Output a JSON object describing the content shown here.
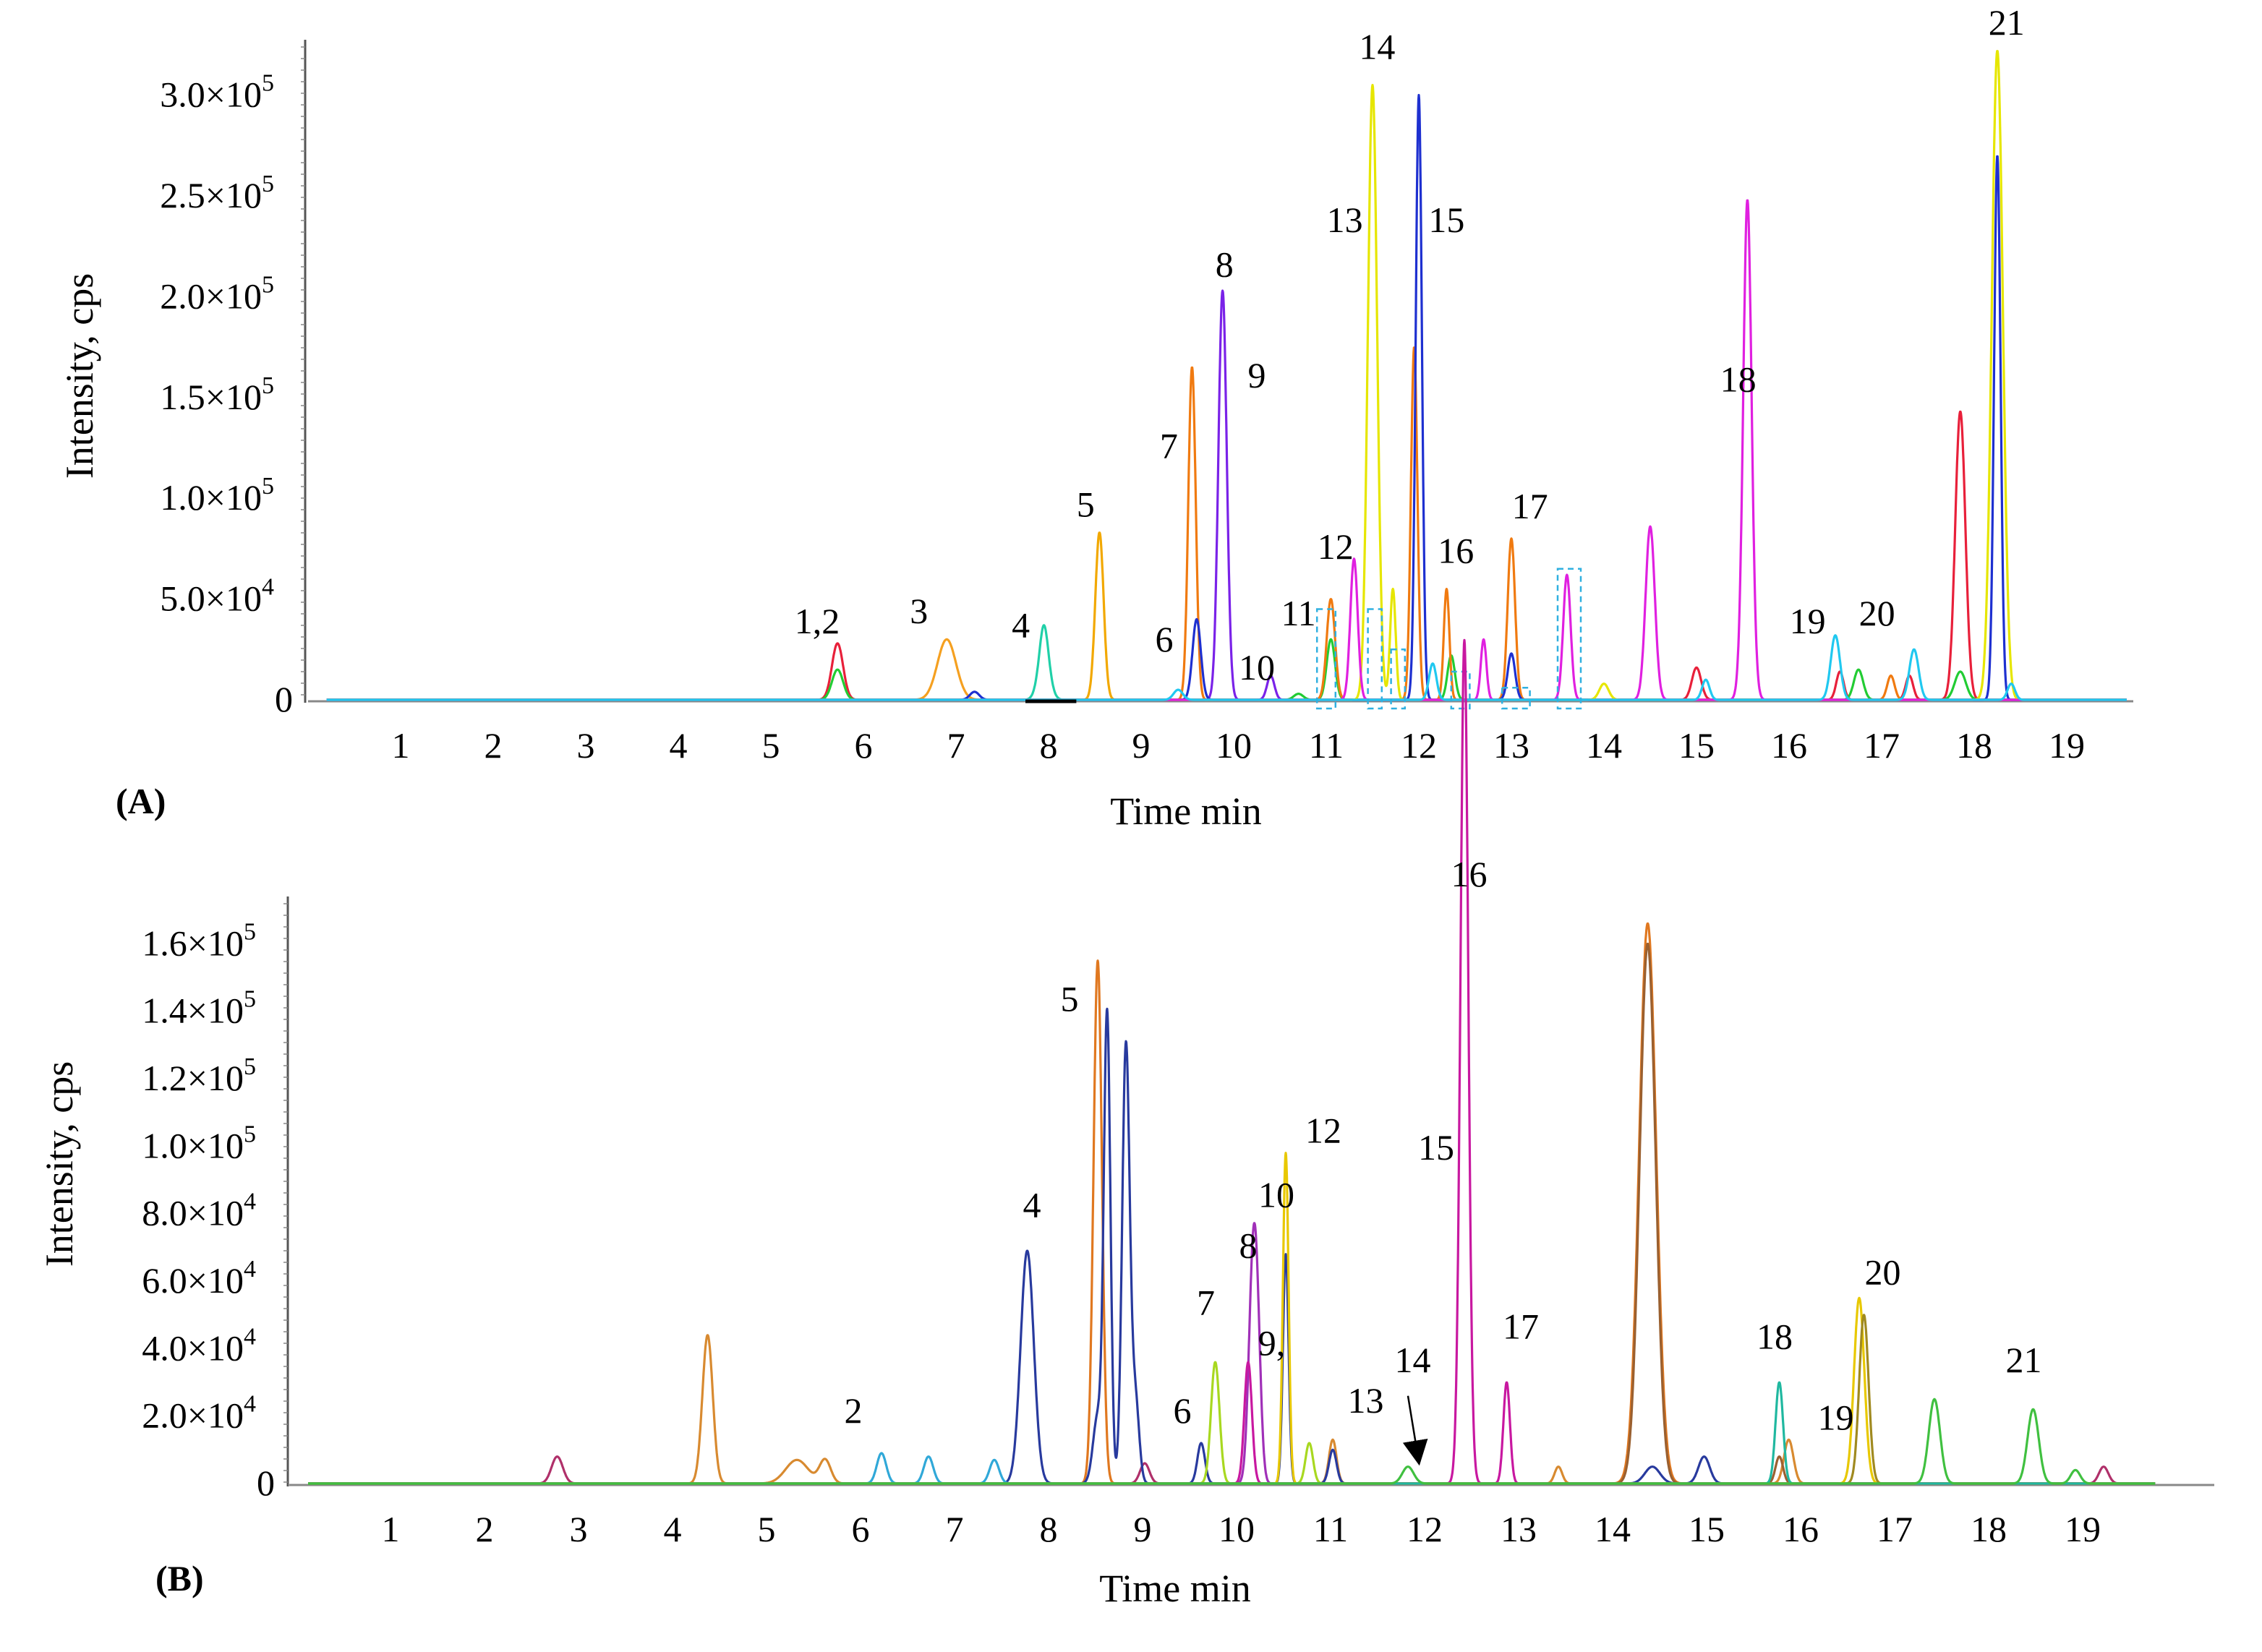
{
  "chart_data": [
    {
      "type": "line",
      "panel_label": "(A)",
      "xlabel": "Time min",
      "ylabel": "Intensity, cps",
      "xlim": [
        0,
        19.7
      ],
      "ylim": [
        0,
        340000
      ],
      "x_ticks": [
        {
          "value": 1,
          "label": "1"
        },
        {
          "value": 2,
          "label": "2"
        },
        {
          "value": 3,
          "label": "3"
        },
        {
          "value": 4,
          "label": "4"
        },
        {
          "value": 5,
          "label": "5"
        },
        {
          "value": 6,
          "label": "6"
        },
        {
          "value": 7,
          "label": "7"
        },
        {
          "value": 8,
          "label": "8"
        },
        {
          "value": 9,
          "label": "9"
        },
        {
          "value": 10,
          "label": "10"
        },
        {
          "value": 11,
          "label": "11"
        },
        {
          "value": 12,
          "label": "12"
        },
        {
          "value": 13,
          "label": "13"
        },
        {
          "value": 14,
          "label": "14"
        },
        {
          "value": 15,
          "label": "15"
        },
        {
          "value": 16,
          "label": "16"
        },
        {
          "value": 17,
          "label": "17"
        },
        {
          "value": 18,
          "label": "18"
        },
        {
          "value": 19,
          "label": "19"
        }
      ],
      "y_ticks": [
        {
          "value": 0,
          "mantissa": "0",
          "exp": ""
        },
        {
          "value": 50000,
          "mantissa": "5.0×10",
          "exp": "4"
        },
        {
          "value": 100000,
          "mantissa": "1.0×10",
          "exp": "5"
        },
        {
          "value": 150000,
          "mantissa": "1.5×10",
          "exp": "5"
        },
        {
          "value": 200000,
          "mantissa": "2.0×10",
          "exp": "5"
        },
        {
          "value": 250000,
          "mantissa": "2.5×10",
          "exp": "5"
        },
        {
          "value": 300000,
          "mantissa": "3.0×10",
          "exp": "5"
        }
      ],
      "series": [
        {
          "name": "red",
          "color": "#e8203a",
          "peaks": [
            [
              5.72,
              28000,
              0.06
            ],
            [
              15.0,
              16000,
              0.05
            ],
            [
              16.55,
              14000,
              0.04
            ],
            [
              17.3,
              12000,
              0.04
            ],
            [
              17.85,
              143000,
              0.055
            ]
          ]
        },
        {
          "name": "green",
          "color": "#22cc33",
          "peaks": [
            [
              5.72,
              15000,
              0.06
            ],
            [
              10.7,
              3000,
              0.05
            ],
            [
              11.05,
              30000,
              0.045
            ],
            [
              12.35,
              22000,
              0.04
            ],
            [
              16.75,
              15000,
              0.05
            ],
            [
              17.85,
              14000,
              0.06
            ]
          ]
        },
        {
          "name": "orange",
          "color": "#f5a020",
          "peaks": [
            [
              6.9,
              30000,
              0.1
            ]
          ]
        },
        {
          "name": "teal",
          "color": "#20d0a8",
          "peaks": [
            [
              7.95,
              25000,
              0.06
            ],
            [
              7.95,
              12000,
              0.04
            ]
          ]
        },
        {
          "name": "gold",
          "color": "#f2a800",
          "peaks": [
            [
              8.55,
              83000,
              0.045
            ]
          ]
        },
        {
          "name": "dark-orange",
          "color": "#f07a10",
          "peaks": [
            [
              9.55,
              165000,
              0.04
            ],
            [
              11.05,
              50000,
              0.045
            ],
            [
              11.95,
              175000,
              0.035
            ],
            [
              12.3,
              55000,
              0.03
            ],
            [
              13.0,
              80000,
              0.04
            ],
            [
              17.1,
              12000,
              0.04
            ]
          ]
        },
        {
          "name": "violet",
          "color": "#7a22e8",
          "peaks": [
            [
              9.88,
              203000,
              0.045
            ],
            [
              10.4,
              12000,
              0.04
            ]
          ]
        },
        {
          "name": "blue",
          "color": "#1e30d0",
          "peaks": [
            [
              7.2,
              4000,
              0.05
            ],
            [
              9.6,
              40000,
              0.045
            ],
            [
              12.0,
              220000,
              0.035
            ],
            [
              12.0,
              80000,
              0.03
            ],
            [
              13.0,
              23000,
              0.04
            ],
            [
              18.25,
              270000,
              0.035
            ]
          ]
        },
        {
          "name": "yellow",
          "color": "#e6e600",
          "peaks": [
            [
              11.5,
              305000,
              0.05
            ],
            [
              11.72,
              55000,
              0.03
            ],
            [
              14.0,
              8000,
              0.05
            ],
            [
              18.25,
              322000,
              0.06
            ]
          ]
        },
        {
          "name": "magenta",
          "color": "#e020e0",
          "peaks": [
            [
              11.3,
              70000,
              0.04
            ],
            [
              12.7,
              30000,
              0.03
            ],
            [
              13.6,
              62000,
              0.04
            ],
            [
              14.5,
              86000,
              0.05
            ],
            [
              15.55,
              148000,
              0.05
            ],
            [
              15.55,
              100000,
              0.04
            ]
          ]
        },
        {
          "name": "cyan",
          "color": "#20c8f0",
          "peaks": [
            [
              9.4,
              5000,
              0.05
            ],
            [
              12.15,
              18000,
              0.04
            ],
            [
              15.1,
              10000,
              0.04
            ],
            [
              16.5,
              32000,
              0.05
            ],
            [
              17.35,
              25000,
              0.05
            ],
            [
              18.4,
              8000,
              0.04
            ]
          ]
        }
      ],
      "peak_labels": [
        {
          "text": "1,2",
          "x": 5.5,
          "y": 33000
        },
        {
          "text": "3",
          "x": 6.6,
          "y": 38000
        },
        {
          "text": "4",
          "x": 7.7,
          "y": 31000
        },
        {
          "text": "5",
          "x": 8.4,
          "y": 91000
        },
        {
          "text": "6",
          "x": 9.25,
          "y": 24000
        },
        {
          "text": "7",
          "x": 9.3,
          "y": 120000
        },
        {
          "text": "8",
          "x": 9.9,
          "y": 210000
        },
        {
          "text": "9",
          "x": 10.25,
          "y": 155000
        },
        {
          "text": "10",
          "x": 10.25,
          "y": 10000
        },
        {
          "text": "11",
          "x": 10.7,
          "y": 37000
        },
        {
          "text": "12",
          "x": 11.1,
          "y": 70000
        },
        {
          "text": "13",
          "x": 11.2,
          "y": 232000
        },
        {
          "text": "14",
          "x": 11.55,
          "y": 318000
        },
        {
          "text": "15",
          "x": 12.3,
          "y": 232000
        },
        {
          "text": "16",
          "x": 12.4,
          "y": 68000
        },
        {
          "text": "17",
          "x": 13.2,
          "y": 90000
        },
        {
          "text": "18",
          "x": 15.45,
          "y": 153000
        },
        {
          "text": "19",
          "x": 16.2,
          "y": 33000
        },
        {
          "text": "20",
          "x": 16.95,
          "y": 37000
        },
        {
          "text": "21",
          "x": 18.35,
          "y": 330000
        }
      ],
      "annotations": "dashed cyan boxes mark small peaks near 11.0, 11.5, 11.8, 12.4, 13.0 and 13.6 min"
    },
    {
      "type": "line",
      "panel_label": "(B)",
      "xlabel": "Time min",
      "ylabel": "Intensity, cps",
      "xlim": [
        0,
        19.9
      ],
      "ylim": [
        0,
        180000
      ],
      "x_ticks": [
        {
          "value": 1,
          "label": "1"
        },
        {
          "value": 2,
          "label": "2"
        },
        {
          "value": 3,
          "label": "3"
        },
        {
          "value": 4,
          "label": "4"
        },
        {
          "value": 5,
          "label": "5"
        },
        {
          "value": 6,
          "label": "6"
        },
        {
          "value": 7,
          "label": "7"
        },
        {
          "value": 8,
          "label": "8"
        },
        {
          "value": 9,
          "label": "9"
        },
        {
          "value": 10,
          "label": "10"
        },
        {
          "value": 11,
          "label": "11"
        },
        {
          "value": 12,
          "label": "12"
        },
        {
          "value": 13,
          "label": "13"
        },
        {
          "value": 14,
          "label": "14"
        },
        {
          "value": 15,
          "label": "15"
        },
        {
          "value": 16,
          "label": "16"
        },
        {
          "value": 17,
          "label": "17"
        },
        {
          "value": 18,
          "label": "18"
        },
        {
          "value": 19,
          "label": "19"
        }
      ],
      "y_ticks": [
        {
          "value": 0,
          "mantissa": "0",
          "exp": ""
        },
        {
          "value": 20000,
          "mantissa": "2.0×10",
          "exp": "4"
        },
        {
          "value": 40000,
          "mantissa": "4.0×10",
          "exp": "4"
        },
        {
          "value": 60000,
          "mantissa": "6.0×10",
          "exp": "4"
        },
        {
          "value": 80000,
          "mantissa": "8.0×10",
          "exp": "4"
        },
        {
          "value": 100000,
          "mantissa": "1.0×10",
          "exp": "5"
        },
        {
          "value": 120000,
          "mantissa": "1.2×10",
          "exp": "5"
        },
        {
          "value": 140000,
          "mantissa": "1.4×10",
          "exp": "5"
        },
        {
          "value": 160000,
          "mantissa": "1.6×10",
          "exp": "5"
        }
      ],
      "series": [
        {
          "name": "maroon",
          "color": "#b0306a",
          "peaks": [
            [
              2.85,
              8000,
              0.06
            ],
            [
              9.1,
              6000,
              0.05
            ],
            [
              19.3,
              5000,
              0.05
            ]
          ]
        },
        {
          "name": "orange-brown",
          "color": "#d88a30",
          "peaks": [
            [
              4.45,
              44000,
              0.055
            ],
            [
              5.4,
              7000,
              0.12
            ],
            [
              5.7,
              7000,
              0.06
            ],
            [
              11.1,
              13000,
              0.04
            ],
            [
              13.5,
              5000,
              0.04
            ],
            [
              15.95,
              13000,
              0.05
            ]
          ]
        },
        {
          "name": "dark-orange",
          "color": "#e07820",
          "peaks": [
            [
              8.6,
              155000,
              0.045
            ],
            [
              14.45,
              166000,
              0.09
            ]
          ]
        },
        {
          "name": "brown",
          "color": "#9a6030",
          "peaks": [
            [
              14.45,
              160000,
              0.085
            ],
            [
              15.85,
              8000,
              0.04
            ]
          ]
        },
        {
          "name": "navy",
          "color": "#283a9e",
          "peaks": [
            [
              7.85,
              69000,
              0.07
            ],
            [
              8.6,
              20000,
              0.05
            ],
            [
              8.7,
              138000,
              0.035
            ],
            [
              8.9,
              130000,
              0.04
            ],
            [
              9.0,
              25000,
              0.04
            ],
            [
              9.7,
              12000,
              0.04
            ],
            [
              10.6,
              68000,
              0.03
            ],
            [
              11.1,
              10000,
              0.04
            ],
            [
              14.5,
              5000,
              0.08
            ],
            [
              15.05,
              8000,
              0.06
            ]
          ]
        },
        {
          "name": "cyan",
          "color": "#30a8d8",
          "peaks": [
            [
              6.3,
              9000,
              0.05
            ],
            [
              6.8,
              8000,
              0.05
            ],
            [
              7.5,
              7000,
              0.05
            ]
          ]
        },
        {
          "name": "lime",
          "color": "#a8d820",
          "peaks": [
            [
              9.85,
              36000,
              0.045
            ],
            [
              10.85,
              12000,
              0.04
            ]
          ]
        },
        {
          "name": "purple",
          "color": "#a030b8",
          "peaks": [
            [
              10.25,
              60000,
              0.045
            ],
            [
              10.3,
              30000,
              0.04
            ]
          ]
        },
        {
          "name": "magenta",
          "color": "#c818a0",
          "peaks": [
            [
              10.2,
              36000,
              0.04
            ],
            [
              12.5,
              175000,
              0.045
            ],
            [
              12.5,
              75000,
              0.035
            ],
            [
              12.95,
              30000,
              0.035
            ]
          ]
        },
        {
          "name": "yellow",
          "color": "#e8c800",
          "peaks": [
            [
              10.6,
              98000,
              0.03
            ],
            [
              16.7,
              55000,
              0.055
            ]
          ]
        },
        {
          "name": "dark-gold",
          "color": "#a08a20",
          "peaks": [
            [
              16.75,
              50000,
              0.05
            ]
          ]
        },
        {
          "name": "teal",
          "color": "#20b8a0",
          "peaks": [
            [
              15.85,
              30000,
              0.04
            ]
          ]
        },
        {
          "name": "green",
          "color": "#40c040",
          "peaks": [
            [
              11.9,
              5000,
              0.06
            ],
            [
              17.5,
              25000,
              0.06
            ],
            [
              18.55,
              22000,
              0.06
            ],
            [
              19.0,
              4000,
              0.05
            ]
          ]
        }
      ],
      "peak_labels": [
        {
          "text": "2",
          "x": 6.0,
          "y": 18000
        },
        {
          "text": "4",
          "x": 7.9,
          "y": 79000
        },
        {
          "text": "5",
          "x": 8.3,
          "y": 140000
        },
        {
          "text": "6",
          "x": 9.5,
          "y": 18000
        },
        {
          "text": "7",
          "x": 9.75,
          "y": 50000
        },
        {
          "text": "8",
          "x": 10.2,
          "y": 67000
        },
        {
          "text": "9,",
          "x": 10.45,
          "y": 38000
        },
        {
          "text": "10",
          "x": 10.5,
          "y": 82000
        },
        {
          "text": "12",
          "x": 11.0,
          "y": 101000
        },
        {
          "text": "13",
          "x": 11.45,
          "y": 21000
        },
        {
          "text": "14",
          "x": 11.95,
          "y": 33000
        },
        {
          "text": "15",
          "x": 12.2,
          "y": 96000
        },
        {
          "text": "16",
          "x": 12.55,
          "y": 177000
        },
        {
          "text": "17",
          "x": 13.1,
          "y": 43000
        },
        {
          "text": "18",
          "x": 15.8,
          "y": 40000
        },
        {
          "text": "19",
          "x": 16.45,
          "y": 16000
        },
        {
          "text": "20",
          "x": 16.95,
          "y": 59000
        },
        {
          "text": "21",
          "x": 18.45,
          "y": 33000
        }
      ],
      "arrow": {
        "from": [
          11.9,
          26000
        ],
        "to": [
          12.0,
          9000
        ]
      }
    }
  ]
}
